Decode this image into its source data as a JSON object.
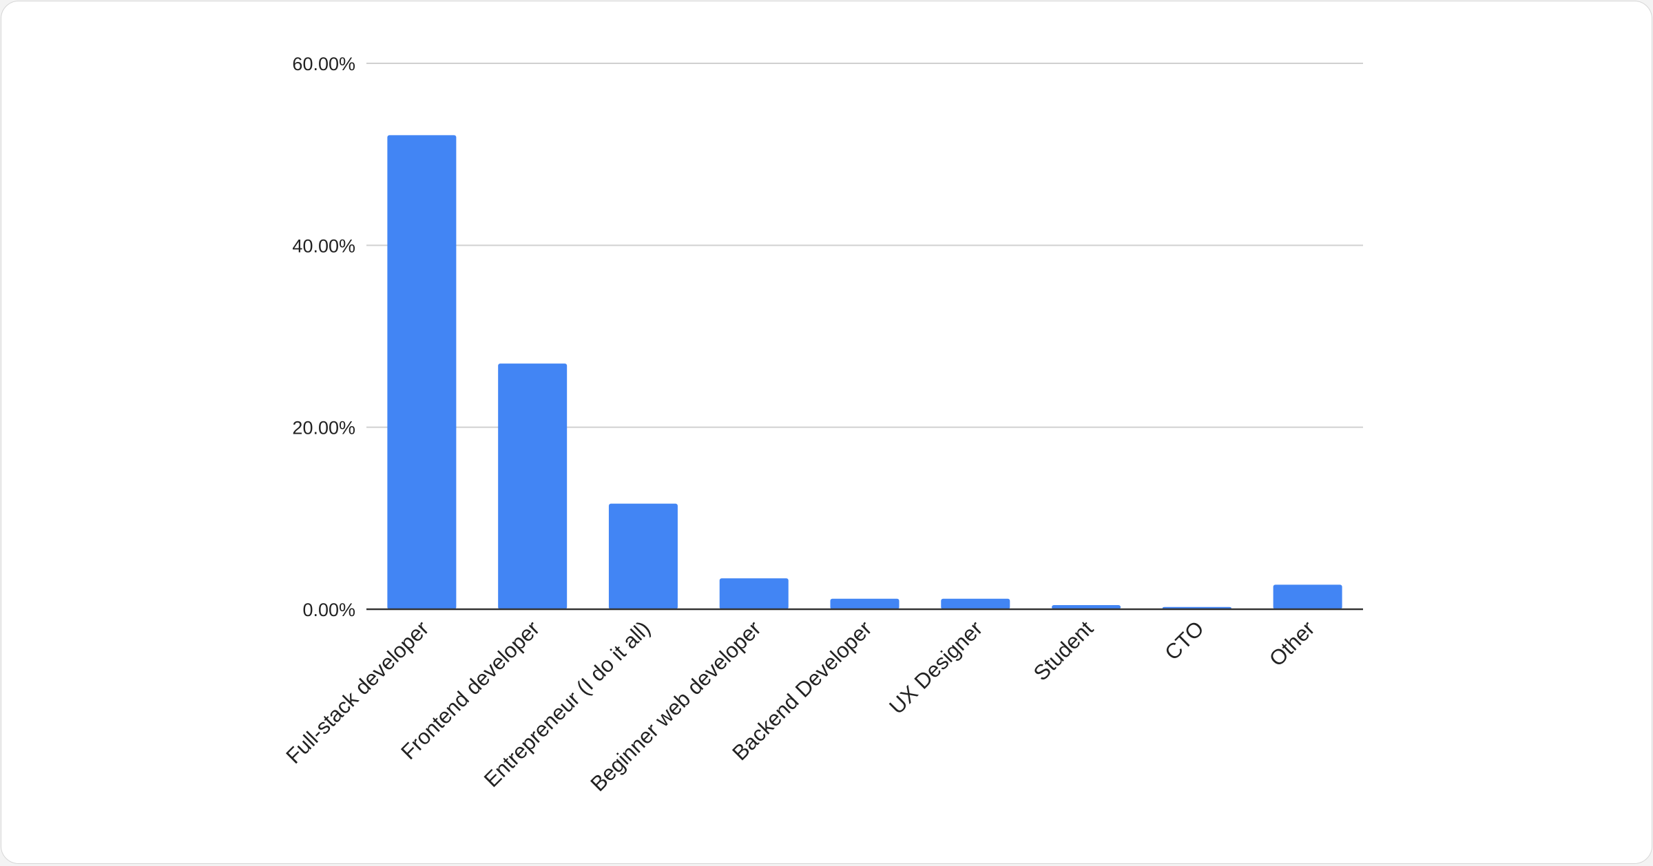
{
  "chart_data": {
    "type": "bar",
    "title": "",
    "xlabel": "",
    "ylabel": "",
    "categories": [
      "Full-stack developer",
      "Frontend developer",
      "Entrepreneur (I do it all)",
      "Beginner web developer",
      "Backend Developer",
      "UX Designer",
      "Student",
      "CTO",
      "Other"
    ],
    "values": [
      52.1,
      27.0,
      11.6,
      3.4,
      1.15,
      1.15,
      0.45,
      0.25,
      2.7
    ],
    "ylim": [
      0,
      60
    ],
    "yticks": [
      0,
      20,
      40,
      60
    ],
    "ytick_labels": [
      "0.00%",
      "20.00%",
      "40.00%",
      "60.00%"
    ],
    "grid": true,
    "legend": "none",
    "bar_color": "#4285f4"
  }
}
